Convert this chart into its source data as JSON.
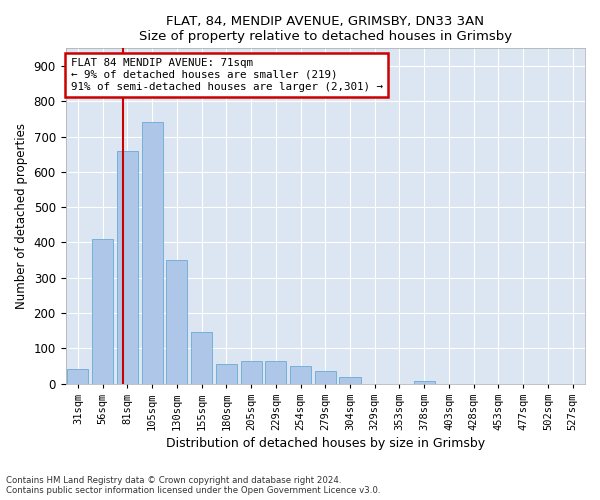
{
  "title1": "FLAT, 84, MENDIP AVENUE, GRIMSBY, DN33 3AN",
  "title2": "Size of property relative to detached houses in Grimsby",
  "xlabel": "Distribution of detached houses by size in Grimsby",
  "ylabel": "Number of detached properties",
  "footnote1": "Contains HM Land Registry data © Crown copyright and database right 2024.",
  "footnote2": "Contains public sector information licensed under the Open Government Licence v3.0.",
  "annotation_line1": "FLAT 84 MENDIP AVENUE: 71sqm",
  "annotation_line2": "← 9% of detached houses are smaller (219)",
  "annotation_line3": "91% of semi-detached houses are larger (2,301) →",
  "bar_color": "#aec6e8",
  "bar_edge_color": "#6aaad4",
  "redline_color": "#cc0000",
  "annotation_box_color": "#cc0000",
  "bg_color": "#dce6f2",
  "grid_color": "#ffffff",
  "categories": [
    "31sqm",
    "56sqm",
    "81sqm",
    "105sqm",
    "130sqm",
    "155sqm",
    "180sqm",
    "205sqm",
    "229sqm",
    "254sqm",
    "279sqm",
    "304sqm",
    "329sqm",
    "353sqm",
    "378sqm",
    "403sqm",
    "428sqm",
    "453sqm",
    "477sqm",
    "502sqm",
    "527sqm"
  ],
  "values": [
    40,
    410,
    660,
    740,
    350,
    145,
    55,
    65,
    65,
    50,
    35,
    18,
    0,
    0,
    8,
    0,
    0,
    0,
    0,
    0,
    0
  ],
  "ylim": [
    0,
    950
  ],
  "yticks": [
    0,
    100,
    200,
    300,
    400,
    500,
    600,
    700,
    800,
    900
  ],
  "red_line_x": 1.82
}
